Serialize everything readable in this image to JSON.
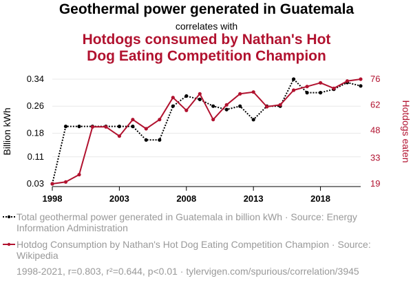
{
  "header": {
    "title": "Geothermal power generated in Guatemala",
    "subtitle": "correlates with",
    "title2_line1": "Hotdogs consumed by Nathan's Hot",
    "title2_line2": "Dog Eating Competition Champion"
  },
  "chart_data": {
    "type": "line",
    "x": [
      1998,
      1999,
      2000,
      2001,
      2002,
      2003,
      2004,
      2005,
      2006,
      2007,
      2008,
      2009,
      2010,
      2011,
      2012,
      2013,
      2014,
      2015,
      2016,
      2017,
      2018,
      2019,
      2020,
      2021
    ],
    "series": [
      {
        "name": "Total geothermal power generated in Guatemala in billion kWh",
        "axis": "left",
        "color": "#000000",
        "style": "dotted",
        "values": [
          0.03,
          0.2,
          0.2,
          0.2,
          0.2,
          0.2,
          0.2,
          0.16,
          0.16,
          0.26,
          0.29,
          0.28,
          0.26,
          0.25,
          0.26,
          0.22,
          0.26,
          0.26,
          0.34,
          0.3,
          0.3,
          0.31,
          0.33,
          0.32
        ]
      },
      {
        "name": "Hotdog Consumption by Nathan's Hot Dog Eating Competition Champion",
        "axis": "right",
        "color": "#b1122f",
        "style": "solid",
        "values": [
          19,
          20,
          24,
          50,
          50,
          45,
          54,
          49,
          54,
          66,
          59,
          68,
          54,
          62,
          68,
          69,
          61,
          62,
          70,
          72,
          74,
          71,
          75,
          76
        ]
      }
    ],
    "xlabel": "",
    "ylabel_left": "Billion kWh",
    "ylabel_right": "Hotdogs eaten",
    "left_ticks": [
      "0.03",
      "0.11",
      "0.18",
      "0.26",
      "0.34"
    ],
    "left_tick_values": [
      0.03,
      0.11,
      0.18,
      0.26,
      0.34
    ],
    "right_ticks": [
      "19",
      "33",
      "48",
      "62",
      "76"
    ],
    "right_tick_values": [
      19,
      33,
      48,
      62,
      76
    ],
    "x_ticks": [
      "1998",
      "2003",
      "2008",
      "2013",
      "2018"
    ],
    "x_tick_values": [
      1998,
      2003,
      2008,
      2013,
      2018
    ],
    "xlim": [
      1998,
      2021
    ],
    "ylim_left": [
      0.03,
      0.34
    ],
    "ylim_right": [
      19,
      76
    ],
    "grid": "horizontal"
  },
  "legend": {
    "item1": "Total geothermal power generated in Guatemala in billion kWh · Source: Energy Information Administration",
    "item2": "Hotdog Consumption by Nathan's Hot Dog Eating Competition Champion · Source: Wikipedia"
  },
  "footer": "1998-2021, r=0.803, r²=0.644, p<0.01 · tylervigen.com/spurious/correlation/3945",
  "colors": {
    "series1": "#000000",
    "series2": "#b1122f",
    "grid": "#e8e8e8",
    "muted": "#999999"
  }
}
